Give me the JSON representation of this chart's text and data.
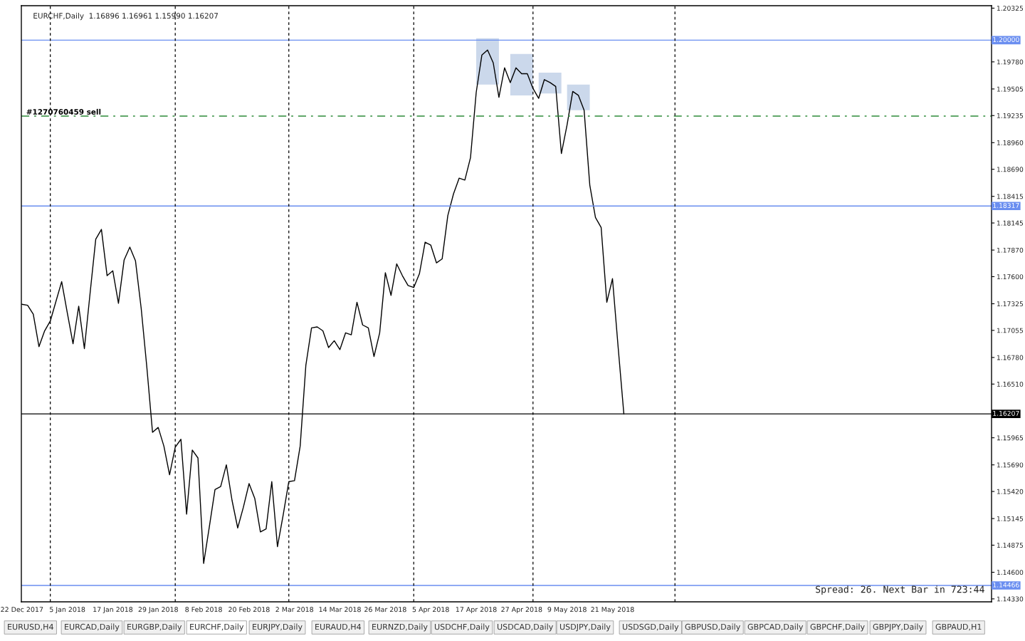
{
  "chart_data": {
    "type": "line",
    "title": "EURCHF,Daily  1.16896 1.16961 1.15990 1.16207",
    "categories": [
      "22 Dec 2017",
      null,
      null,
      null,
      null,
      null,
      null,
      null,
      "5 Jan 2018",
      null,
      null,
      null,
      null,
      null,
      null,
      null,
      "17 Jan 2018",
      null,
      null,
      null,
      null,
      null,
      null,
      null,
      "29 Jan 2018",
      null,
      null,
      null,
      null,
      null,
      null,
      null,
      "8 Feb 2018",
      null,
      null,
      null,
      null,
      null,
      null,
      null,
      "20 Feb 2018",
      null,
      null,
      null,
      null,
      null,
      null,
      null,
      "2 Mar 2018",
      null,
      null,
      null,
      null,
      null,
      null,
      null,
      "14 Mar 2018",
      null,
      null,
      null,
      null,
      null,
      null,
      null,
      "26 Mar 2018",
      null,
      null,
      null,
      null,
      null,
      null,
      null,
      "5 Apr 2018",
      null,
      null,
      null,
      null,
      null,
      null,
      null,
      "17 Apr 2018",
      null,
      null,
      null,
      null,
      null,
      null,
      null,
      "27 Apr 2018",
      null,
      null,
      null,
      null,
      null,
      null,
      null,
      "9 May 2018",
      null,
      null,
      null,
      null,
      null,
      null,
      null,
      "21 May 2018",
      null,
      null,
      null,
      null,
      null,
      null,
      null,
      null,
      null,
      null,
      null,
      null,
      null,
      null,
      null,
      null,
      null,
      null,
      null,
      null,
      null,
      null,
      null,
      null,
      null,
      null,
      null,
      null,
      null,
      null,
      null,
      null,
      null,
      null,
      null,
      null,
      null,
      null,
      null,
      null,
      null,
      null,
      null,
      null,
      null,
      null,
      null,
      null,
      null,
      null,
      null,
      null,
      null,
      null,
      null,
      null,
      null,
      null,
      null,
      null,
      null,
      null,
      null,
      null,
      null,
      null
    ],
    "series": [
      {
        "color": "#000000",
        "values": [
          1.1732,
          1.1731,
          1.1722,
          1.1689,
          1.1705,
          1.1715,
          1.1735,
          1.1755,
          1.1723,
          1.1692,
          1.173,
          1.1687,
          1.1743,
          1.1798,
          1.1808,
          1.1761,
          1.1766,
          1.1733,
          1.1777,
          1.179,
          1.1776,
          1.1728,
          1.1668,
          1.1602,
          1.1607,
          1.1588,
          1.1559,
          1.1587,
          1.1595,
          1.1519,
          1.1584,
          1.1576,
          1.1469,
          1.1506,
          1.1544,
          1.1547,
          1.1569,
          1.1533,
          1.1505,
          1.1526,
          1.155,
          1.1535,
          1.1501,
          1.1504,
          1.1552,
          1.1486,
          1.1518,
          1.1552,
          1.1553,
          1.1588,
          1.167,
          1.1708,
          1.1709,
          1.1705,
          1.1688,
          1.1695,
          1.1686,
          1.1703,
          1.1701,
          1.1734,
          1.1711,
          1.1708,
          1.1679,
          1.1703,
          1.1764,
          1.1741,
          1.1773,
          1.1761,
          1.1751,
          1.1749,
          1.1763,
          1.1795,
          1.1792,
          1.1774,
          1.1778,
          1.1822,
          1.1844,
          1.186,
          1.1858,
          1.1881,
          1.1947,
          1.1985,
          1.199,
          1.1977,
          1.1942,
          1.1972,
          1.1957,
          1.1972,
          1.1966,
          1.1966,
          1.1951,
          1.1941,
          1.196,
          1.1957,
          1.1953,
          1.1885,
          1.1914,
          1.1948,
          1.1944,
          1.1929,
          1.1853,
          1.182,
          1.181,
          1.1734,
          1.1758,
          1.1688,
          1.16207,
          null,
          null,
          null,
          null,
          null,
          null,
          null,
          null,
          null,
          null,
          null,
          null,
          null,
          null,
          null,
          null,
          null,
          null,
          null,
          null,
          null,
          null,
          null,
          null,
          null,
          null,
          null,
          null,
          null,
          null,
          null,
          null,
          null,
          null,
          null,
          null,
          null,
          null,
          null,
          null,
          null,
          null,
          null,
          null,
          null,
          null,
          null,
          null,
          null,
          null,
          null,
          null,
          null,
          null,
          null,
          null,
          null,
          null,
          null,
          null,
          null,
          null,
          null,
          null
        ]
      }
    ],
    "ylim": [
      1.143,
      1.2035
    ],
    "yticks": [
      1.20325,
      {
        "value": 1.1978,
        "label": "1.19780"
      },
      1.19505,
      1.19235,
      {
        "value": 1.1896,
        "label": "1.18960"
      },
      {
        "value": 1.1869,
        "label": "1.18690"
      },
      1.18415,
      1.18145,
      {
        "value": 1.1787,
        "label": "1.17870"
      },
      {
        "value": 1.176,
        "label": "1.17600"
      },
      1.17325,
      1.17055,
      {
        "value": 1.1678,
        "label": "1.16780"
      },
      {
        "value": 1.1651,
        "label": "1.16510"
      },
      1.15965,
      {
        "value": 1.1569,
        "label": "1.15690"
      },
      {
        "value": 1.1542,
        "label": "1.15420"
      },
      1.15145,
      1.14875,
      {
        "value": 1.146,
        "label": "1.14600"
      },
      {
        "value": 1.1433,
        "label": "1.14330"
      }
    ],
    "ref_lines": [
      {
        "axis": "y",
        "value": 1.2,
        "label": "1.20000",
        "color": "#6a8ef0"
      },
      {
        "axis": "y",
        "value": 1.18317,
        "label": "1.18317",
        "color": "#6a8ef0"
      },
      {
        "axis": "y",
        "value": 1.14466,
        "label": "1.14466",
        "color": "#6a8ef0"
      },
      {
        "axis": "y",
        "value": 1.16207,
        "label": "1.16207",
        "color": "#000000"
      },
      {
        "axis": "y",
        "value": 1.1923,
        "label": "#1270760459 sell",
        "color": "#2e8b3a",
        "line_style": "dashdot"
      }
    ],
    "annotations": [
      "Spread: 26. Next Bar in 723:44",
      "EURUSD,H4",
      "EURCAD,Daily",
      "EURGBP,Daily",
      "EURCHF,Daily",
      "EURJPY,Daily",
      "EURAUD,H4",
      "EURNZD,Daily",
      "USDCHF,Daily",
      "USDCAD,Daily",
      "USDJPY,Daily",
      "USDSGD,Daily",
      "GBPUSD,Daily",
      "GBPCAD,Daily",
      "GBPCHF,Daily",
      "GBPJPY,Daily",
      "GBPAUD,H1"
    ],
    "grid": false,
    "legend": false,
    "marker": "none",
    "line_style": "solid"
  }
}
